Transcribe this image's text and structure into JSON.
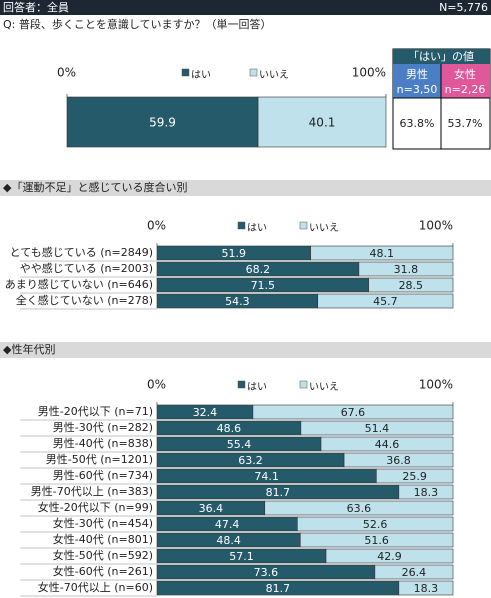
{
  "header": {
    "respondents": "回答者：全員",
    "n": "N=5,776"
  },
  "question": "Q:  普段、歩くことを意識していますか？（単一回答）",
  "summary_table": {
    "title": "「はい」の値",
    "columns": [
      {
        "label": "男性",
        "n": "n=3,50",
        "value": "63.8%"
      },
      {
        "label": "女性",
        "n": "n=2,26",
        "value": "53.7%"
      }
    ]
  },
  "chart_data": [
    {
      "type": "stacked_barh",
      "categories": [
        null
      ],
      "series": [
        {
          "name": "はい",
          "color": "#255a6b",
          "values": [
            59.9
          ]
        },
        {
          "name": "いいえ",
          "color": "#bfe1ec",
          "values": [
            40.1
          ]
        }
      ],
      "xlim": [
        0,
        100
      ],
      "xticks": [
        {
          "value": 0,
          "label": "0%"
        },
        {
          "value": 100,
          "label": "100%"
        }
      ]
    },
    {
      "type": "stacked_barh",
      "title": "◆「運動不足」と感じている度合い別",
      "categories": [
        "とても感じている (n=2849)",
        "やや感じている (n=2003)",
        "あまり感じていない (n=646)",
        "全く感じていない (n=278)"
      ],
      "series": [
        {
          "name": "はい",
          "color": "#255a6b",
          "values": [
            51.9,
            68.2,
            71.5,
            54.3
          ]
        },
        {
          "name": "いいえ",
          "color": "#bfe1ec",
          "values": [
            48.1,
            31.8,
            28.5,
            45.7
          ]
        }
      ],
      "xlim": [
        0,
        100
      ],
      "xticks": [
        {
          "value": 0,
          "label": "0%"
        },
        {
          "value": 100,
          "label": "100%"
        }
      ]
    },
    {
      "type": "stacked_barh",
      "title": "◆性年代別",
      "categories": [
        "男性-20代以下 (n=71)",
        "男性-30代 (n=282)",
        "男性-40代 (n=838)",
        "男性-50代 (n=1201)",
        "男性-60代 (n=734)",
        "男性-70代以上 (n=383)",
        "女性-20代以下 (n=99)",
        "女性-30代 (n=454)",
        "女性-40代 (n=801)",
        "女性-50代 (n=592)",
        "女性-60代 (n=261)",
        "女性-70代以上 (n=60)"
      ],
      "series": [
        {
          "name": "はい",
          "color": "#255a6b",
          "values": [
            32.4,
            48.6,
            55.4,
            63.2,
            74.1,
            81.7,
            36.4,
            47.4,
            48.4,
            57.1,
            73.6,
            81.7
          ]
        },
        {
          "name": "いいえ",
          "color": "#bfe1ec",
          "values": [
            67.6,
            51.4,
            44.6,
            36.8,
            25.9,
            18.3,
            63.6,
            52.6,
            51.6,
            42.9,
            26.4,
            18.3
          ]
        }
      ],
      "xlim": [
        0,
        100
      ],
      "xticks": [
        {
          "value": 0,
          "label": "0%"
        },
        {
          "value": 100,
          "label": "100%"
        }
      ]
    }
  ]
}
